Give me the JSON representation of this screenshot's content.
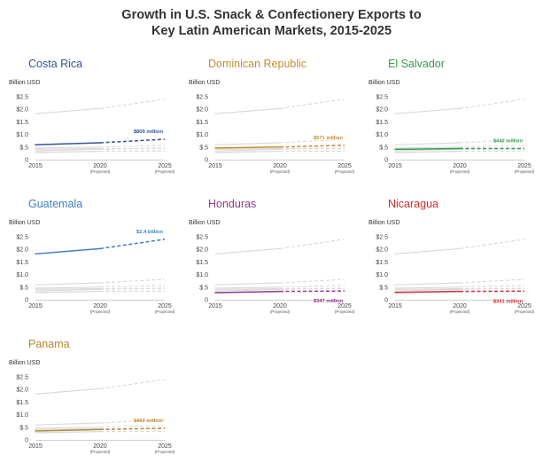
{
  "title": {
    "line1": "Growth in U.S. Snack & Confectionery Exports to",
    "line2": "Key Latin American Markets, 2015-2025"
  },
  "chart_data": {
    "type": "line",
    "x": [
      "2015",
      "2020",
      "2025"
    ],
    "x_tick_labels": [
      {
        "year": "2015",
        "note": ""
      },
      {
        "year": "2020",
        "note": "(Projected)"
      },
      {
        "year": "2025",
        "note": "(Projected)"
      }
    ],
    "actual_through": "2020",
    "ylabel": "Billion USD",
    "y_ticks": [
      "0",
      "$.5",
      "$1.0",
      "$1.5",
      "$2.0",
      "$2.5"
    ],
    "ylim": [
      0,
      2.5
    ],
    "background_color": "#d9d9d9",
    "grid": false,
    "series": [
      {
        "name": "Costa Rica",
        "color": "#2f5597",
        "values": [
          0.59,
          0.67,
          0.809
        ],
        "label": "$809 million"
      },
      {
        "name": "Dominican Republic",
        "color": "#c09032",
        "values": [
          0.46,
          0.5,
          0.571
        ],
        "label": "$571 million"
      },
      {
        "name": "El Salvador",
        "color": "#3a9a4f",
        "values": [
          0.41,
          0.44,
          0.442
        ],
        "label": "$442 million"
      },
      {
        "name": "Guatemala",
        "color": "#3d7ebf",
        "values": [
          1.82,
          2.03,
          2.4
        ],
        "label": "$2.4 billion"
      },
      {
        "name": "Honduras",
        "color": "#8e3b8e",
        "values": [
          0.28,
          0.33,
          0.347
        ],
        "label": "$347 million"
      },
      {
        "name": "Nicaragua",
        "color": "#d42d2d",
        "values": [
          0.29,
          0.33,
          0.341
        ],
        "label": "$341 million"
      },
      {
        "name": "Panama",
        "color": "#b58a2e",
        "values": [
          0.35,
          0.41,
          0.463
        ],
        "label": "$463 million"
      }
    ]
  }
}
